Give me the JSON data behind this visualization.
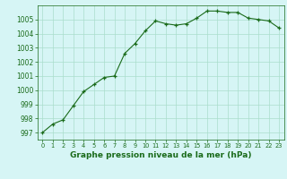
{
  "x": [
    0,
    1,
    2,
    3,
    4,
    5,
    6,
    7,
    8,
    9,
    10,
    11,
    12,
    13,
    14,
    15,
    16,
    17,
    18,
    19,
    20,
    21,
    22,
    23
  ],
  "y": [
    997.0,
    997.6,
    997.9,
    998.9,
    999.9,
    1000.4,
    1000.9,
    1001.0,
    1002.6,
    1003.3,
    1004.2,
    1004.9,
    1004.7,
    1004.6,
    1004.7,
    1005.1,
    1005.6,
    1005.6,
    1005.5,
    1005.5,
    1005.1,
    1005.0,
    1004.9,
    1004.4
  ],
  "line_color": "#1a6b1a",
  "marker": "+",
  "background_color": "#d6f5f5",
  "grid_color": "#aaddcc",
  "xlabel": "Graphe pression niveau de la mer (hPa)",
  "ylim": [
    996.5,
    1006.0
  ],
  "xlim": [
    -0.5,
    23.5
  ],
  "yticks": [
    997,
    998,
    999,
    1000,
    1001,
    1002,
    1003,
    1004,
    1005
  ],
  "xticks": [
    0,
    1,
    2,
    3,
    4,
    5,
    6,
    7,
    8,
    9,
    10,
    11,
    12,
    13,
    14,
    15,
    16,
    17,
    18,
    19,
    20,
    21,
    22,
    23
  ],
  "xlabel_fontsize": 6.5,
  "ytick_fontsize": 5.5,
  "xtick_fontsize": 4.8,
  "tick_color": "#1a6b1a",
  "spine_color": "#1a6b1a"
}
